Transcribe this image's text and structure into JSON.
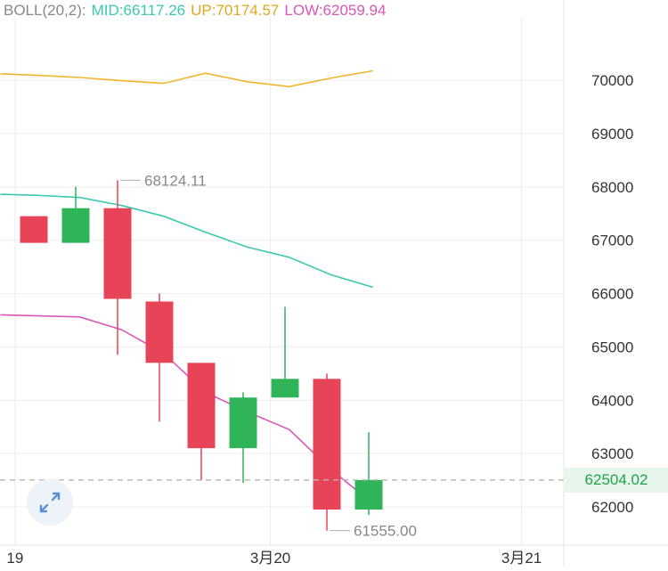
{
  "legend": {
    "name": "BOLL(20,2):",
    "mid_label": "MID:66117.26",
    "up_label": "UP:70174.57",
    "low_label": "LOW:62059.94"
  },
  "colors": {
    "up_candle": "#2fb45a",
    "down_candle": "#e84457",
    "mid_line": "#3cc9b0",
    "up_line": "#f0b52c",
    "low_line": "#d957b8",
    "grid": "#eeeeee",
    "axis_text": "#333333",
    "annotation_text": "#888888",
    "current_price_line": "#b5b5b5"
  },
  "current_price_tag": "62504.02",
  "zoom_icon": "expand-arrows-icon",
  "chart_data": {
    "type": "candlestick",
    "ylim": [
      61450,
      71000
    ],
    "y_ticks": [
      62000,
      63000,
      64000,
      65000,
      66000,
      67000,
      68000,
      69000,
      70000
    ],
    "y_tick_labels": [
      "62000",
      "63000",
      "64000",
      "65000",
      "66000",
      "67000",
      "68000",
      "69000",
      "70000"
    ],
    "x_tick_labels": [
      {
        "label": "19",
        "index": -0.45
      },
      {
        "label": "3月20",
        "index": 5.65
      },
      {
        "label": "3月21",
        "index": 11.65
      }
    ],
    "candles": [
      {
        "index": 0,
        "open": 67450,
        "high": 67450,
        "low": 66950,
        "close": 66950
      },
      {
        "index": 1,
        "open": 66950,
        "high": 68000,
        "low": 66950,
        "close": 67600
      },
      {
        "index": 2,
        "open": 67600,
        "high": 68124.11,
        "low": 64850,
        "close": 65900
      },
      {
        "index": 3,
        "open": 65850,
        "high": 66000,
        "low": 63600,
        "close": 64700
      },
      {
        "index": 4,
        "open": 64700,
        "high": 64700,
        "low": 62500,
        "close": 63100
      },
      {
        "index": 5,
        "open": 63100,
        "high": 64150,
        "low": 62450,
        "close": 64050
      },
      {
        "index": 6,
        "open": 64050,
        "high": 65750,
        "low": 64050,
        "close": 64400
      },
      {
        "index": 7,
        "open": 64400,
        "high": 64500,
        "low": 61555,
        "close": 61950
      },
      {
        "index": 8,
        "open": 61950,
        "high": 63400,
        "low": 61850,
        "close": 62504.02
      }
    ],
    "bands": {
      "up": [
        {
          "index": -0.8,
          "value": 70120
        },
        {
          "index": 0.1,
          "value": 70090
        },
        {
          "index": 1.1,
          "value": 70050
        },
        {
          "index": 2.1,
          "value": 69990
        },
        {
          "index": 3.1,
          "value": 69940
        },
        {
          "index": 4.1,
          "value": 70130
        },
        {
          "index": 5.1,
          "value": 69970
        },
        {
          "index": 6.1,
          "value": 69880
        },
        {
          "index": 7.1,
          "value": 70040
        },
        {
          "index": 8.1,
          "value": 70174.57
        }
      ],
      "mid": [
        {
          "index": -0.8,
          "value": 67860
        },
        {
          "index": 0.1,
          "value": 67840
        },
        {
          "index": 1.1,
          "value": 67800
        },
        {
          "index": 2.1,
          "value": 67650
        },
        {
          "index": 3.1,
          "value": 67450
        },
        {
          "index": 4.1,
          "value": 67150
        },
        {
          "index": 5.1,
          "value": 66870
        },
        {
          "index": 6.1,
          "value": 66680
        },
        {
          "index": 7.1,
          "value": 66350
        },
        {
          "index": 8.1,
          "value": 66117.26
        }
      ],
      "low": [
        {
          "index": -0.8,
          "value": 65600
        },
        {
          "index": 0.1,
          "value": 65580
        },
        {
          "index": 1.1,
          "value": 65560
        },
        {
          "index": 2.1,
          "value": 65320
        },
        {
          "index": 3.1,
          "value": 64880
        },
        {
          "index": 4.1,
          "value": 64150
        },
        {
          "index": 5.1,
          "value": 63780
        },
        {
          "index": 6.1,
          "value": 63450
        },
        {
          "index": 7.1,
          "value": 62700
        },
        {
          "index": 8.1,
          "value": 62059.94
        }
      ]
    },
    "annotations": [
      {
        "label": "68124.11",
        "value": 68124.11,
        "index": 2,
        "side": "top"
      },
      {
        "label": "61555.00",
        "value": 61555.0,
        "index": 7,
        "side": "bottom"
      }
    ],
    "current_price": 62504.02
  }
}
